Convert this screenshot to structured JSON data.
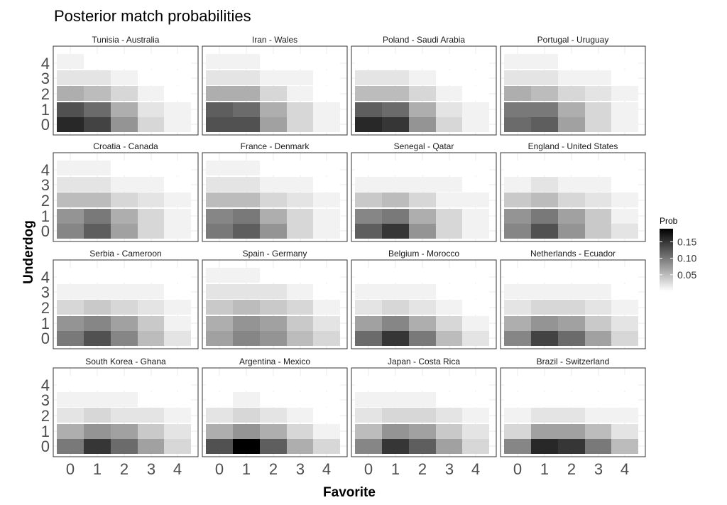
{
  "chart_data": {
    "type": "heatmap",
    "title": "Posterior match probabilities",
    "xlabel": "Favorite",
    "ylabel": "Underdog",
    "x_ticks": [
      "0",
      "1",
      "2",
      "3",
      "4"
    ],
    "y_ticks": [
      "0",
      "1",
      "2",
      "3",
      "4"
    ],
    "legend": {
      "title": "Prob",
      "ticks": [
        "0.15",
        "0.10",
        "0.05"
      ],
      "tick_values": [
        0.15,
        0.1,
        0.05
      ],
      "range": [
        0.0,
        0.19
      ],
      "low_color": "#ffffff",
      "high_color": "#000000",
      "position": "right"
    },
    "panels": [
      {
        "title": "Tunisia - Australia",
        "values": [
          [
            0.16,
            0.14,
            0.08,
            0.03,
            0.01
          ],
          [
            0.13,
            0.11,
            0.06,
            0.02,
            0.01
          ],
          [
            0.06,
            0.05,
            0.03,
            0.01,
            0.0
          ],
          [
            0.02,
            0.02,
            0.01,
            0.0,
            0.0
          ],
          [
            0.01,
            0.0,
            0.0,
            0.0,
            0.0
          ]
        ]
      },
      {
        "title": "Iran - Wales",
        "values": [
          [
            0.13,
            0.13,
            0.07,
            0.03,
            0.01
          ],
          [
            0.12,
            0.11,
            0.06,
            0.03,
            0.01
          ],
          [
            0.06,
            0.06,
            0.03,
            0.01,
            0.0
          ],
          [
            0.02,
            0.02,
            0.01,
            0.01,
            0.0
          ],
          [
            0.01,
            0.01,
            0.0,
            0.0,
            0.0
          ]
        ]
      },
      {
        "title": "Poland - Saudi Arabia",
        "values": [
          [
            0.16,
            0.15,
            0.08,
            0.03,
            0.01
          ],
          [
            0.12,
            0.11,
            0.06,
            0.02,
            0.01
          ],
          [
            0.05,
            0.05,
            0.03,
            0.01,
            0.0
          ],
          [
            0.02,
            0.02,
            0.01,
            0.0,
            0.0
          ],
          [
            0.0,
            0.0,
            0.0,
            0.0,
            0.0
          ]
        ]
      },
      {
        "title": "Portugal - Uruguay",
        "values": [
          [
            0.11,
            0.12,
            0.07,
            0.03,
            0.01
          ],
          [
            0.1,
            0.1,
            0.06,
            0.03,
            0.01
          ],
          [
            0.06,
            0.05,
            0.03,
            0.02,
            0.01
          ],
          [
            0.02,
            0.02,
            0.01,
            0.01,
            0.0
          ],
          [
            0.01,
            0.01,
            0.0,
            0.0,
            0.0
          ]
        ]
      },
      {
        "title": "Croatia - Canada",
        "values": [
          [
            0.09,
            0.12,
            0.07,
            0.03,
            0.01
          ],
          [
            0.08,
            0.1,
            0.06,
            0.03,
            0.01
          ],
          [
            0.05,
            0.05,
            0.03,
            0.02,
            0.01
          ],
          [
            0.02,
            0.02,
            0.01,
            0.01,
            0.0
          ],
          [
            0.01,
            0.01,
            0.0,
            0.0,
            0.0
          ]
        ]
      },
      {
        "title": "France - Denmark",
        "values": [
          [
            0.1,
            0.12,
            0.08,
            0.03,
            0.01
          ],
          [
            0.09,
            0.1,
            0.06,
            0.03,
            0.01
          ],
          [
            0.05,
            0.05,
            0.03,
            0.02,
            0.01
          ],
          [
            0.02,
            0.02,
            0.01,
            0.01,
            0.0
          ],
          [
            0.01,
            0.01,
            0.0,
            0.0,
            0.0
          ]
        ]
      },
      {
        "title": "Senegal - Qatar",
        "values": [
          [
            0.12,
            0.15,
            0.08,
            0.03,
            0.01
          ],
          [
            0.09,
            0.1,
            0.06,
            0.03,
            0.01
          ],
          [
            0.04,
            0.05,
            0.03,
            0.01,
            0.01
          ],
          [
            0.01,
            0.01,
            0.01,
            0.01,
            0.0
          ],
          [
            0.0,
            0.0,
            0.0,
            0.0,
            0.0
          ]
        ]
      },
      {
        "title": "England - United States",
        "values": [
          [
            0.09,
            0.13,
            0.08,
            0.04,
            0.02
          ],
          [
            0.08,
            0.1,
            0.07,
            0.04,
            0.01
          ],
          [
            0.04,
            0.05,
            0.03,
            0.02,
            0.01
          ],
          [
            0.01,
            0.02,
            0.01,
            0.01,
            0.0
          ],
          [
            0.0,
            0.0,
            0.0,
            0.0,
            0.0
          ]
        ]
      },
      {
        "title": "Serbia - Cameroon",
        "values": [
          [
            0.1,
            0.13,
            0.09,
            0.05,
            0.02
          ],
          [
            0.08,
            0.09,
            0.07,
            0.04,
            0.01
          ],
          [
            0.03,
            0.04,
            0.03,
            0.02,
            0.01
          ],
          [
            0.01,
            0.01,
            0.01,
            0.01,
            0.0
          ],
          [
            0.0,
            0.0,
            0.0,
            0.0,
            0.0
          ]
        ]
      },
      {
        "title": "Spain - Germany",
        "values": [
          [
            0.07,
            0.09,
            0.08,
            0.05,
            0.03
          ],
          [
            0.06,
            0.08,
            0.07,
            0.04,
            0.02
          ],
          [
            0.04,
            0.05,
            0.04,
            0.03,
            0.01
          ],
          [
            0.02,
            0.02,
            0.02,
            0.01,
            0.0
          ],
          [
            0.01,
            0.01,
            0.0,
            0.0,
            0.0
          ]
        ]
      },
      {
        "title": "Belgium - Morocco",
        "values": [
          [
            0.11,
            0.15,
            0.1,
            0.05,
            0.02
          ],
          [
            0.07,
            0.09,
            0.06,
            0.03,
            0.01
          ],
          [
            0.02,
            0.03,
            0.02,
            0.01,
            0.0
          ],
          [
            0.01,
            0.01,
            0.01,
            0.0,
            0.0
          ],
          [
            0.0,
            0.0,
            0.0,
            0.0,
            0.0
          ]
        ]
      },
      {
        "title": "Netherlands - Ecuador",
        "values": [
          [
            0.09,
            0.14,
            0.11,
            0.07,
            0.03
          ],
          [
            0.06,
            0.08,
            0.07,
            0.04,
            0.02
          ],
          [
            0.02,
            0.03,
            0.03,
            0.02,
            0.01
          ],
          [
            0.01,
            0.01,
            0.01,
            0.01,
            0.0
          ],
          [
            0.0,
            0.0,
            0.0,
            0.0,
            0.0
          ]
        ]
      },
      {
        "title": "South Korea - Ghana",
        "values": [
          [
            0.1,
            0.15,
            0.11,
            0.07,
            0.03
          ],
          [
            0.06,
            0.08,
            0.07,
            0.04,
            0.02
          ],
          [
            0.02,
            0.03,
            0.02,
            0.02,
            0.01
          ],
          [
            0.01,
            0.01,
            0.01,
            0.0,
            0.0
          ],
          [
            0.0,
            0.0,
            0.0,
            0.0,
            0.0
          ]
        ]
      },
      {
        "title": "Argentina - Mexico",
        "values": [
          [
            0.13,
            0.19,
            0.12,
            0.06,
            0.03
          ],
          [
            0.06,
            0.08,
            0.06,
            0.03,
            0.01
          ],
          [
            0.02,
            0.03,
            0.02,
            0.01,
            0.0
          ],
          [
            0.0,
            0.01,
            0.0,
            0.0,
            0.0
          ],
          [
            0.0,
            0.0,
            0.0,
            0.0,
            0.0
          ]
        ]
      },
      {
        "title": "Japan - Costa Rica",
        "values": [
          [
            0.09,
            0.15,
            0.12,
            0.07,
            0.03
          ],
          [
            0.05,
            0.08,
            0.07,
            0.04,
            0.02
          ],
          [
            0.02,
            0.03,
            0.03,
            0.02,
            0.01
          ],
          [
            0.01,
            0.01,
            0.01,
            0.0,
            0.0
          ],
          [
            0.0,
            0.0,
            0.0,
            0.0,
            0.0
          ]
        ]
      },
      {
        "title": "Brazil - Switzerland",
        "values": [
          [
            0.09,
            0.16,
            0.15,
            0.1,
            0.05
          ],
          [
            0.03,
            0.07,
            0.07,
            0.05,
            0.02
          ],
          [
            0.01,
            0.02,
            0.02,
            0.01,
            0.01
          ],
          [
            0.0,
            0.0,
            0.0,
            0.0,
            0.0
          ],
          [
            0.0,
            0.0,
            0.0,
            0.0,
            0.0
          ]
        ]
      }
    ]
  }
}
